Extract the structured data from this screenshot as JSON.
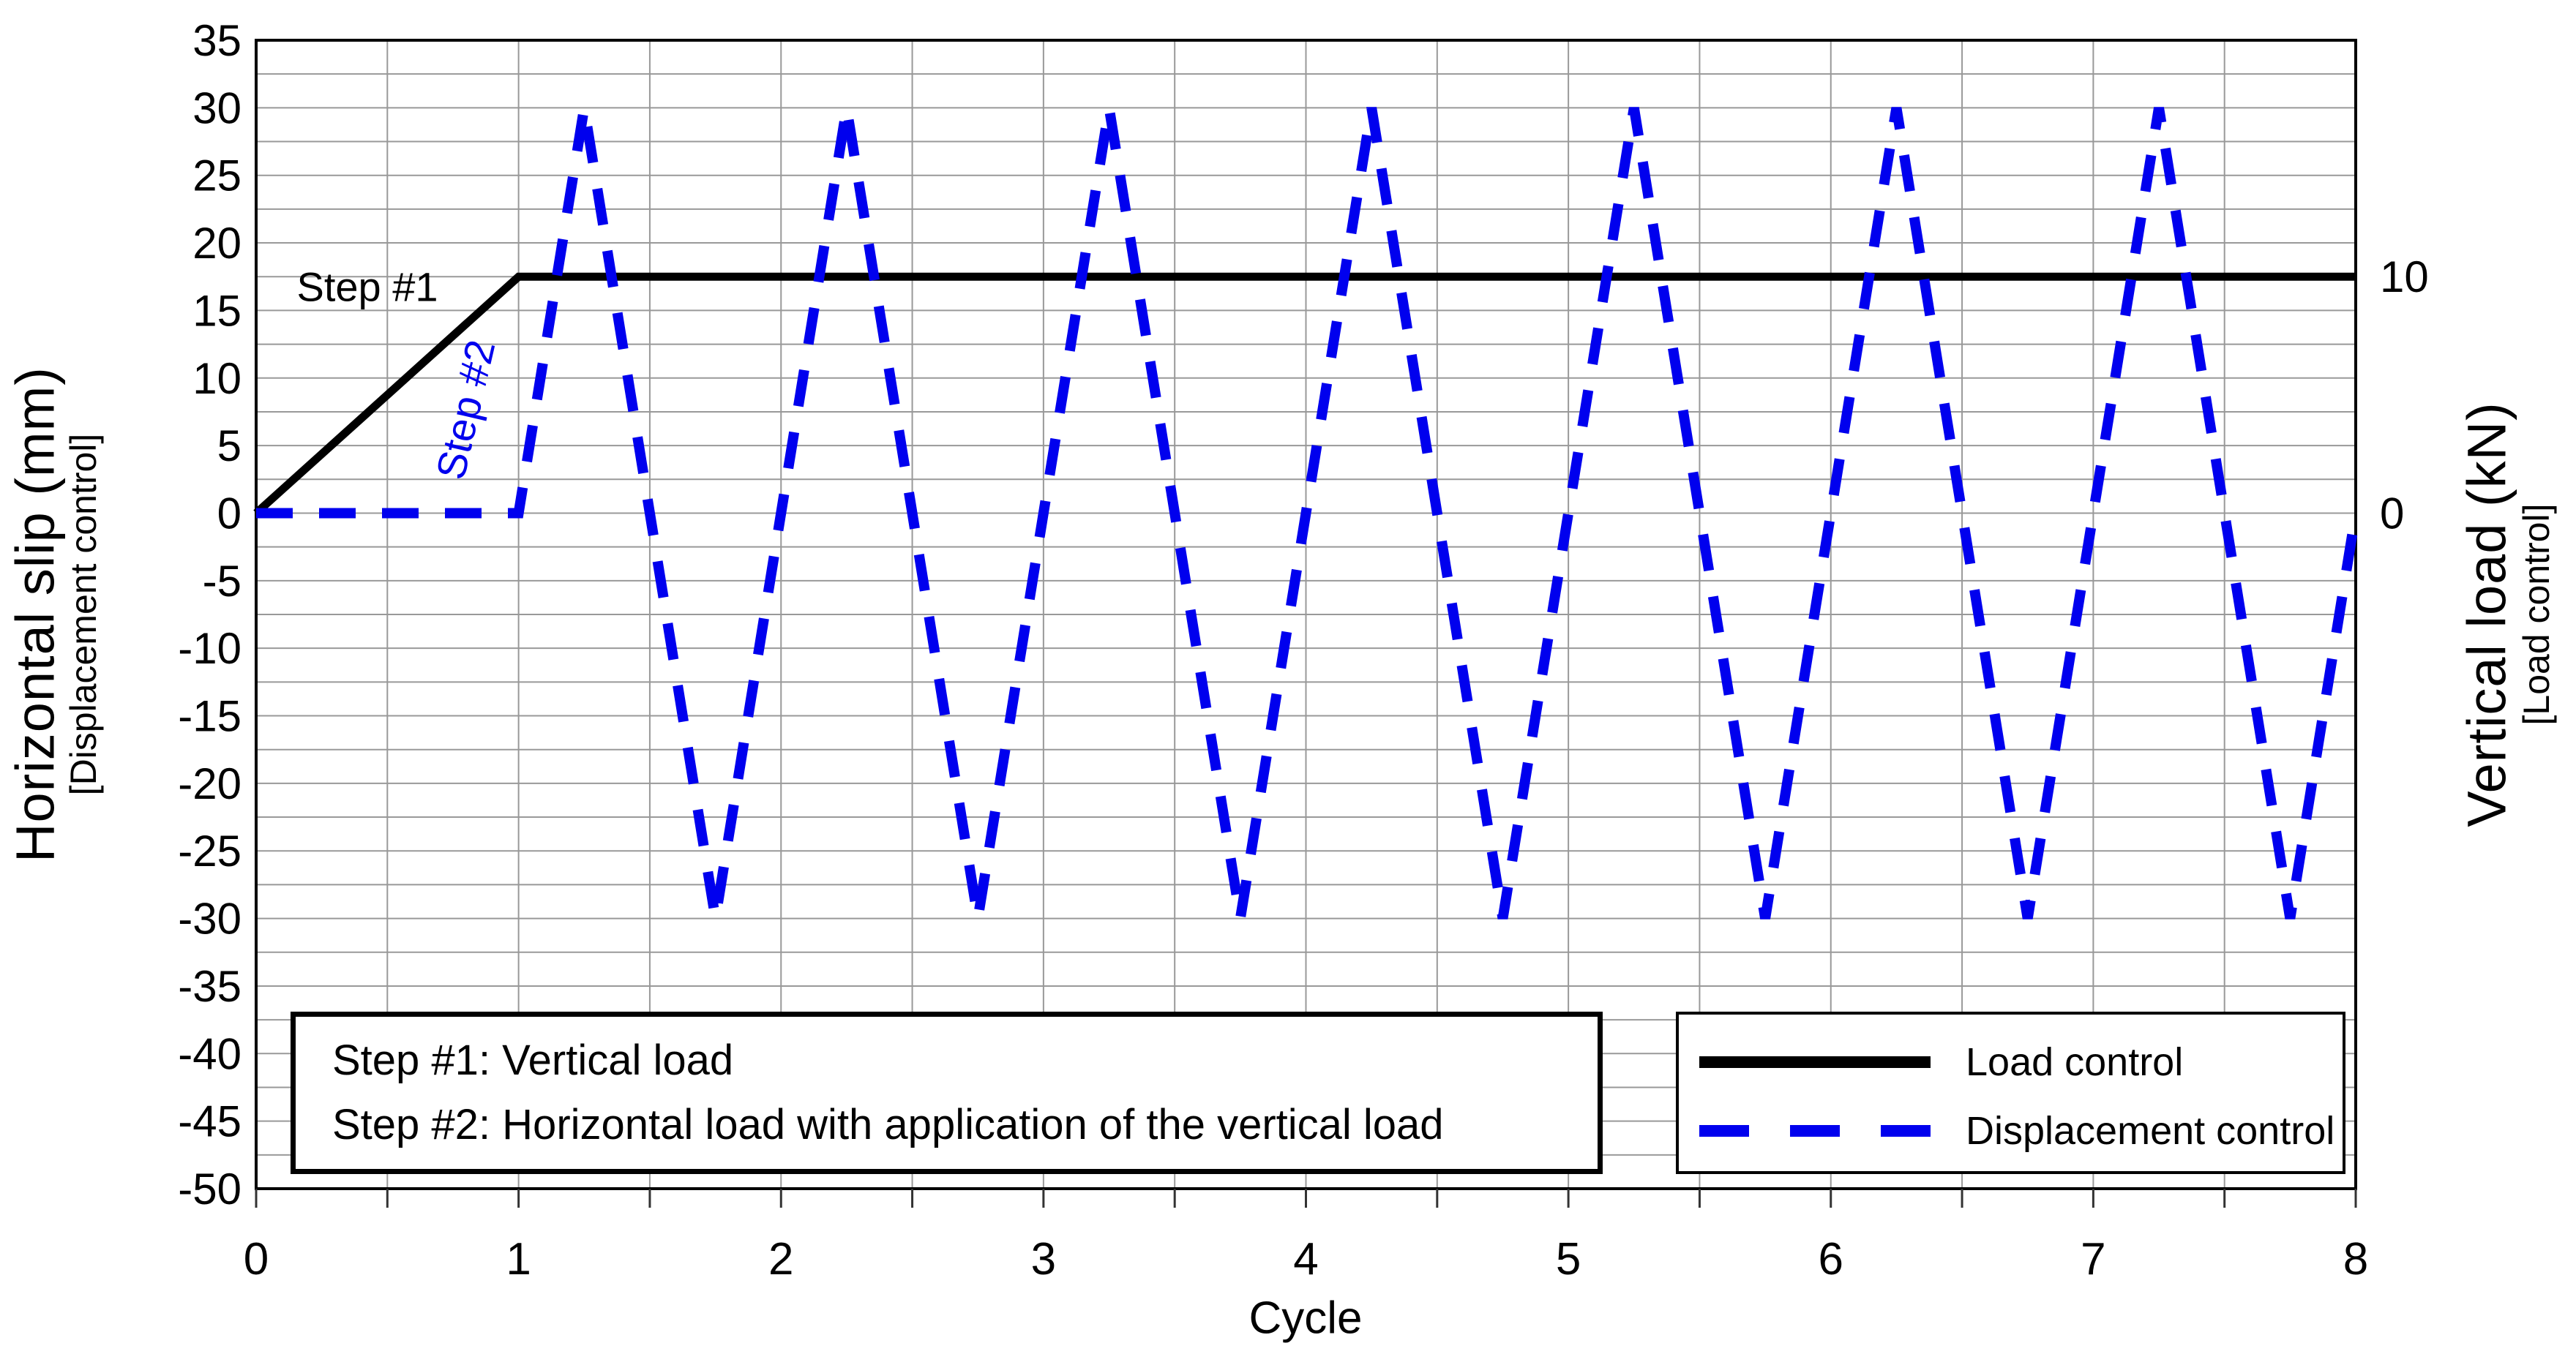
{
  "chart_data": {
    "type": "line",
    "title": "",
    "xlabel": "Cycle",
    "x_range": [
      0,
      8
    ],
    "x_tick_labels": [
      "0",
      "1",
      "2",
      "3",
      "4",
      "5",
      "6",
      "7",
      "8"
    ],
    "x_grid_step": 0.5,
    "grid": true,
    "left_axis": {
      "title": "Horizontal slip (mm)",
      "subtitle": "[Displacement control]",
      "range": [
        -50,
        35
      ],
      "tick_step": 5,
      "grid_step": 2.5,
      "tick_labels": [
        "35",
        "30",
        "25",
        "20",
        "15",
        "10",
        "5",
        "0",
        "-5",
        "-10",
        "-15",
        "-20",
        "-25",
        "-30",
        "-35",
        "-40",
        "-45",
        "-50"
      ]
    },
    "right_axis": {
      "title": "Vertical load (kN)",
      "subtitle": "[Load control]",
      "labels": [
        {
          "text": "10",
          "at_left_value": 17.5
        },
        {
          "text": "0",
          "at_left_value": 0
        }
      ]
    },
    "series": [
      {
        "name": "Load control",
        "color": "#000000",
        "style": "solid",
        "points": [
          [
            0,
            0
          ],
          [
            1,
            17.5
          ],
          [
            8,
            17.5
          ]
        ]
      },
      {
        "name": "Displacement control",
        "color": "#0000EE",
        "style": "dashed",
        "points": [
          [
            0,
            0
          ],
          [
            1,
            0
          ],
          [
            1.25,
            30
          ],
          [
            1.75,
            -30
          ],
          [
            2.25,
            30
          ],
          [
            2.75,
            -30
          ],
          [
            3.25,
            30
          ],
          [
            3.75,
            -30
          ],
          [
            4.25,
            30
          ],
          [
            4.75,
            -30
          ],
          [
            5.25,
            30
          ],
          [
            5.75,
            -30
          ],
          [
            6.25,
            30
          ],
          [
            6.75,
            -30
          ],
          [
            7.25,
            30
          ],
          [
            7.75,
            -30
          ],
          [
            8,
            0
          ]
        ]
      }
    ],
    "annotations": [
      {
        "text": "Step #1",
        "color": "#000000"
      },
      {
        "text": "Step #2",
        "color": "#0000EE"
      }
    ],
    "legend": {
      "position": "bottom-right",
      "entries": [
        {
          "label": "Load control",
          "color": "#000000",
          "style": "solid"
        },
        {
          "label": "Displacement control",
          "color": "#0000EE",
          "style": "dashed"
        }
      ]
    },
    "note_box": {
      "lines": [
        "Step #1: Vertical load",
        "Step #2: Horizontal load with application of the vertical load"
      ]
    },
    "colors": {
      "grid": "#999999",
      "axis": "#000000",
      "background": "#FFFFFF",
      "dashed_series": "#0000EE"
    }
  }
}
